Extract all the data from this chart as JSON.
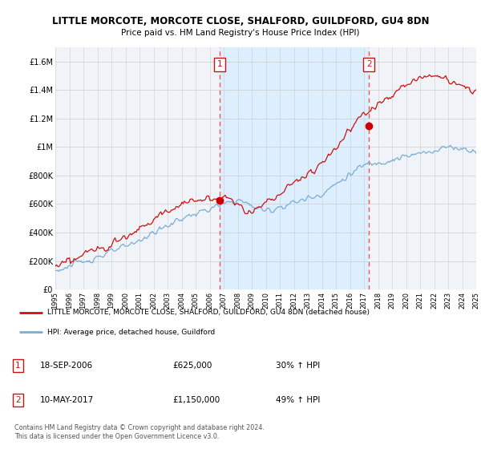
{
  "title": "LITTLE MORCOTE, MORCOTE CLOSE, SHALFORD, GUILDFORD, GU4 8DN",
  "subtitle": "Price paid vs. HM Land Registry's House Price Index (HPI)",
  "legend_line1": "LITTLE MORCOTE, MORCOTE CLOSE, SHALFORD, GUILDFORD, GU4 8DN (detached house)",
  "legend_line2": "HPI: Average price, detached house, Guildford",
  "annotation1": {
    "num": "1",
    "date": "18-SEP-2006",
    "price": "£625,000",
    "hpi": "30% ↑ HPI"
  },
  "annotation2": {
    "num": "2",
    "date": "10-MAY-2017",
    "price": "£1,150,000",
    "hpi": "49% ↑ HPI"
  },
  "footer": "Contains HM Land Registry data © Crown copyright and database right 2024.\nThis data is licensed under the Open Government Licence v3.0.",
  "ylim": [
    0,
    1700000
  ],
  "yticks": [
    0,
    200000,
    400000,
    600000,
    800000,
    1000000,
    1200000,
    1400000,
    1600000
  ],
  "ytick_labels": [
    "£0",
    "£200K",
    "£400K",
    "£600K",
    "£800K",
    "£1M",
    "£1.2M",
    "£1.4M",
    "£1.6M"
  ],
  "x_start_year": 1995,
  "x_end_year": 2025,
  "sale1_year": 2006.72,
  "sale1_value": 625000,
  "sale2_year": 2017.36,
  "sale2_value": 1150000,
  "hpi_color": "#7aadd4",
  "sale_color": "#cc1111",
  "sale_dot_color": "#cc0000",
  "vline_color": "#ee5555",
  "highlight_color": "#ddeeff",
  "bg_color": "#ffffff",
  "plot_bg_color": "#f0f4f8"
}
